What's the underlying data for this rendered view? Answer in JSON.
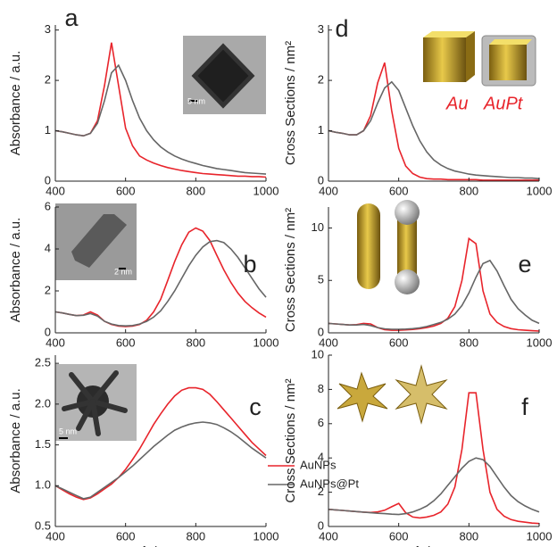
{
  "chart_data": [
    {
      "type": "line",
      "title": "a",
      "ylabel": "Absorbance / a.u.",
      "annotations": [
        "5 nm"
      ],
      "x": [
        400,
        420,
        440,
        460,
        480,
        500,
        520,
        540,
        560,
        580,
        600,
        620,
        640,
        660,
        680,
        700,
        720,
        740,
        760,
        780,
        800,
        820,
        840,
        860,
        880,
        900,
        920,
        940,
        960,
        980,
        1000
      ],
      "xlim": [
        400,
        1000
      ],
      "xticks": [
        400,
        600,
        800,
        1000
      ],
      "ylim": [
        0,
        3.1
      ],
      "yticks": [
        0,
        1,
        2,
        3
      ],
      "series": [
        {
          "color": "#e8242b",
          "values": [
            1.0,
            0.98,
            0.95,
            0.92,
            0.9,
            0.95,
            1.2,
            1.9,
            2.75,
            1.9,
            1.05,
            0.7,
            0.5,
            0.42,
            0.36,
            0.31,
            0.27,
            0.24,
            0.21,
            0.19,
            0.17,
            0.15,
            0.14,
            0.13,
            0.12,
            0.11,
            0.1,
            0.1,
            0.09,
            0.09,
            0.08
          ]
        },
        {
          "color": "#666666",
          "values": [
            1.0,
            0.98,
            0.95,
            0.92,
            0.9,
            0.95,
            1.15,
            1.6,
            2.15,
            2.3,
            2.0,
            1.6,
            1.25,
            1.0,
            0.82,
            0.68,
            0.58,
            0.5,
            0.44,
            0.39,
            0.35,
            0.31,
            0.28,
            0.25,
            0.23,
            0.21,
            0.19,
            0.17,
            0.16,
            0.15,
            0.14
          ]
        }
      ]
    },
    {
      "type": "line",
      "title": "b",
      "ylabel": "Absorbance / a.u.",
      "annotations": [
        "2 nm"
      ],
      "x": [
        400,
        420,
        440,
        460,
        480,
        500,
        520,
        540,
        560,
        580,
        600,
        620,
        640,
        660,
        680,
        700,
        720,
        740,
        760,
        780,
        800,
        820,
        840,
        860,
        880,
        900,
        920,
        940,
        960,
        980,
        1000
      ],
      "xlim": [
        400,
        1000
      ],
      "xticks": [
        400,
        600,
        800,
        1000
      ],
      "ylim": [
        0,
        6
      ],
      "yticks": [
        0,
        2,
        4,
        6
      ],
      "series": [
        {
          "color": "#e8242b",
          "values": [
            1.0,
            0.95,
            0.88,
            0.82,
            0.85,
            1.0,
            0.85,
            0.55,
            0.4,
            0.32,
            0.3,
            0.32,
            0.4,
            0.6,
            1.0,
            1.6,
            2.5,
            3.4,
            4.2,
            4.8,
            5.0,
            4.85,
            4.4,
            3.7,
            3.0,
            2.4,
            1.9,
            1.5,
            1.2,
            0.95,
            0.75
          ]
        },
        {
          "color": "#666666",
          "values": [
            1.0,
            0.95,
            0.88,
            0.82,
            0.84,
            0.92,
            0.8,
            0.55,
            0.42,
            0.35,
            0.33,
            0.35,
            0.42,
            0.55,
            0.75,
            1.05,
            1.5,
            2.0,
            2.6,
            3.2,
            3.7,
            4.1,
            4.35,
            4.4,
            4.3,
            4.0,
            3.6,
            3.1,
            2.6,
            2.1,
            1.7
          ]
        }
      ]
    },
    {
      "type": "line",
      "title": "c",
      "ylabel": "Absorbance / a.u.",
      "xlabel": "λ / nm",
      "annotations": [
        "5 nm"
      ],
      "x": [
        400,
        420,
        440,
        460,
        480,
        500,
        520,
        540,
        560,
        580,
        600,
        620,
        640,
        660,
        680,
        700,
        720,
        740,
        760,
        780,
        800,
        820,
        840,
        860,
        880,
        900,
        920,
        940,
        960,
        980,
        1000
      ],
      "xlim": [
        400,
        1000
      ],
      "xticks": [
        400,
        600,
        800,
        1000
      ],
      "ylim": [
        0.5,
        2.6
      ],
      "yticks": [
        0.5,
        {
          "value": 1,
          "label": "1.0"
        },
        1.5,
        {
          "value": 2,
          "label": "2.0"
        },
        2.5
      ],
      "legend": "lower-center",
      "series": [
        {
          "name": "AuNPs",
          "color": "#e8242b",
          "values": [
            1.0,
            0.95,
            0.9,
            0.86,
            0.83,
            0.85,
            0.9,
            0.96,
            1.02,
            1.1,
            1.2,
            1.32,
            1.45,
            1.6,
            1.75,
            1.88,
            2.0,
            2.1,
            2.17,
            2.2,
            2.2,
            2.18,
            2.12,
            2.03,
            1.93,
            1.83,
            1.73,
            1.63,
            1.53,
            1.45,
            1.37
          ]
        },
        {
          "name": "AuNPs@Pt",
          "color": "#666666",
          "values": [
            1.0,
            0.96,
            0.92,
            0.88,
            0.84,
            0.86,
            0.92,
            0.98,
            1.04,
            1.1,
            1.17,
            1.24,
            1.32,
            1.4,
            1.48,
            1.55,
            1.62,
            1.68,
            1.72,
            1.75,
            1.77,
            1.78,
            1.77,
            1.75,
            1.71,
            1.66,
            1.6,
            1.53,
            1.46,
            1.4,
            1.34
          ]
        }
      ]
    },
    {
      "type": "line",
      "title": "d",
      "ylabel": "Cross Sections / nm²",
      "annotations": [
        "Au",
        "AuPt"
      ],
      "x": [
        400,
        420,
        440,
        460,
        480,
        500,
        520,
        540,
        560,
        580,
        600,
        620,
        640,
        660,
        680,
        700,
        720,
        740,
        760,
        780,
        800,
        820,
        840,
        860,
        880,
        900,
        920,
        940,
        960,
        980,
        1000
      ],
      "xlim": [
        400,
        1000
      ],
      "xticks": [
        400,
        600,
        800,
        1000
      ],
      "ylim": [
        0,
        3.1
      ],
      "yticks": [
        0,
        1,
        2,
        3
      ],
      "series": [
        {
          "color": "#e8242b",
          "values": [
            1.0,
            0.97,
            0.95,
            0.92,
            0.92,
            1.0,
            1.3,
            1.95,
            2.35,
            1.4,
            0.65,
            0.3,
            0.15,
            0.08,
            0.05,
            0.04,
            0.04,
            0.03,
            0.03,
            0.03,
            0.03,
            0.03,
            0.02,
            0.02,
            0.02,
            0.02,
            0.02,
            0.02,
            0.02,
            0.02,
            0.02
          ]
        },
        {
          "color": "#666666",
          "values": [
            1.0,
            0.97,
            0.95,
            0.92,
            0.92,
            1.0,
            1.2,
            1.55,
            1.85,
            1.97,
            1.8,
            1.45,
            1.1,
            0.8,
            0.58,
            0.42,
            0.32,
            0.25,
            0.2,
            0.17,
            0.14,
            0.12,
            0.11,
            0.1,
            0.09,
            0.08,
            0.07,
            0.07,
            0.06,
            0.06,
            0.05
          ]
        }
      ]
    },
    {
      "type": "line",
      "title": "e",
      "ylabel": "Cross Sections / nm²",
      "x": [
        400,
        420,
        440,
        460,
        480,
        500,
        520,
        540,
        560,
        580,
        600,
        620,
        640,
        660,
        680,
        700,
        720,
        740,
        760,
        780,
        800,
        820,
        840,
        860,
        880,
        900,
        920,
        940,
        960,
        980,
        1000
      ],
      "xlim": [
        400,
        1000
      ],
      "xticks": [
        400,
        600,
        800,
        1000
      ],
      "ylim": [
        0,
        12
      ],
      "yticks": [
        0,
        5,
        10
      ],
      "series": [
        {
          "color": "#e8242b",
          "values": [
            0.9,
            0.85,
            0.8,
            0.75,
            0.78,
            0.9,
            0.85,
            0.5,
            0.3,
            0.25,
            0.25,
            0.28,
            0.32,
            0.4,
            0.5,
            0.65,
            0.9,
            1.4,
            2.5,
            5.0,
            9.0,
            8.5,
            4.0,
            1.8,
            1.0,
            0.6,
            0.4,
            0.3,
            0.25,
            0.2,
            0.17
          ]
        },
        {
          "color": "#666666",
          "values": [
            0.9,
            0.85,
            0.8,
            0.75,
            0.75,
            0.8,
            0.7,
            0.5,
            0.38,
            0.34,
            0.34,
            0.36,
            0.4,
            0.48,
            0.6,
            0.8,
            1.0,
            1.3,
            1.8,
            2.6,
            3.8,
            5.3,
            6.6,
            6.9,
            5.9,
            4.5,
            3.2,
            2.3,
            1.7,
            1.2,
            0.9
          ]
        }
      ]
    },
    {
      "type": "line",
      "title": "f",
      "ylabel": "Cross Sections / nm²",
      "xlabel": "λ / nm",
      "x": [
        400,
        420,
        440,
        460,
        480,
        500,
        520,
        540,
        560,
        580,
        600,
        620,
        640,
        660,
        680,
        700,
        720,
        740,
        760,
        780,
        800,
        820,
        840,
        860,
        880,
        900,
        920,
        940,
        960,
        980,
        1000
      ],
      "xlim": [
        400,
        1000
      ],
      "xticks": [
        400,
        600,
        800,
        1000
      ],
      "ylim": [
        0,
        10
      ],
      "yticks": [
        0,
        2,
        4,
        6,
        8,
        10
      ],
      "series": [
        {
          "color": "#e8242b",
          "values": [
            1.0,
            0.97,
            0.94,
            0.9,
            0.87,
            0.84,
            0.82,
            0.85,
            0.95,
            1.15,
            1.35,
            0.8,
            0.55,
            0.5,
            0.55,
            0.65,
            0.85,
            1.3,
            2.3,
            4.5,
            7.8,
            7.8,
            4.5,
            2.0,
            1.0,
            0.6,
            0.4,
            0.3,
            0.25,
            0.2,
            0.17
          ]
        },
        {
          "color": "#666666",
          "values": [
            1.0,
            0.97,
            0.94,
            0.9,
            0.87,
            0.84,
            0.8,
            0.77,
            0.75,
            0.72,
            0.7,
            0.75,
            0.85,
            1.0,
            1.2,
            1.5,
            1.9,
            2.4,
            2.9,
            3.4,
            3.8,
            4.0,
            3.9,
            3.5,
            2.9,
            2.3,
            1.8,
            1.45,
            1.2,
            1.0,
            0.85
          ]
        }
      ]
    }
  ]
}
